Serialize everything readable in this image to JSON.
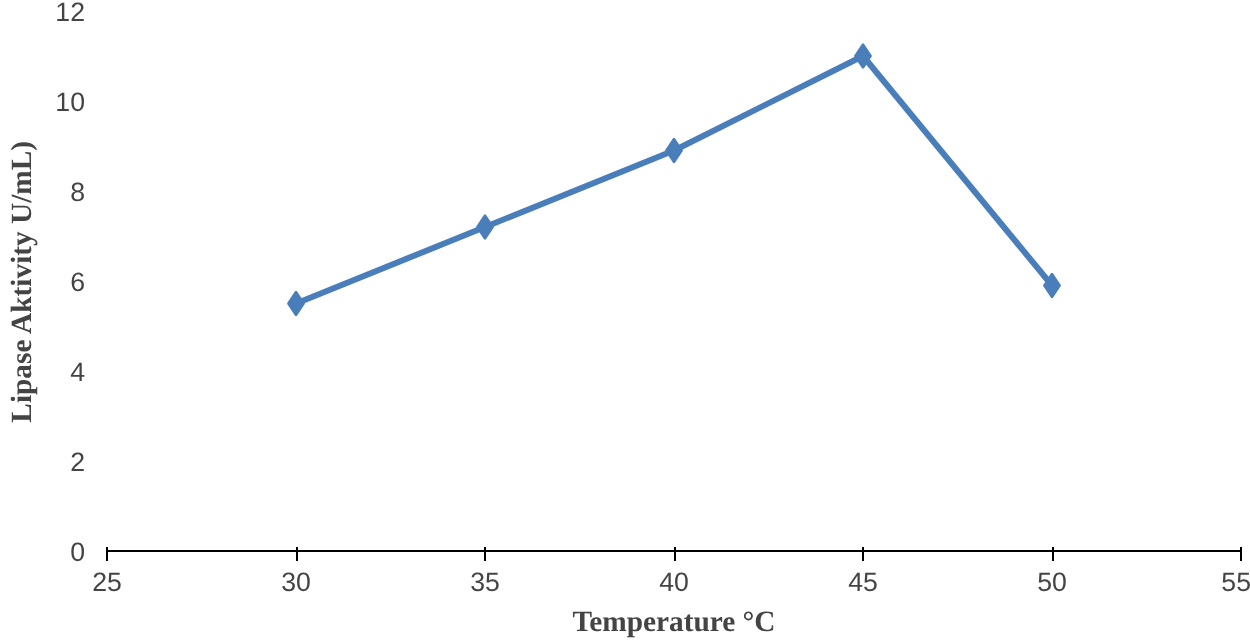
{
  "chart_data": {
    "type": "line",
    "xlabel": "Temperature °C",
    "ylabel": "Lipase Aktivity U/mL)",
    "x": [
      30,
      35,
      40,
      45,
      50
    ],
    "series": [
      {
        "color": "#4a7ebb",
        "values": [
          5.5,
          7.2,
          8.9,
          11.0,
          5.9
        ]
      }
    ],
    "xlim": [
      25,
      55
    ],
    "xticks": [
      25,
      30,
      35,
      40,
      45,
      50,
      55
    ],
    "ylim": [
      0,
      12
    ],
    "yticks": [
      0,
      2,
      4,
      6,
      8,
      10,
      12
    ],
    "grid": false,
    "marker": "diamond",
    "line_style": "solid"
  }
}
